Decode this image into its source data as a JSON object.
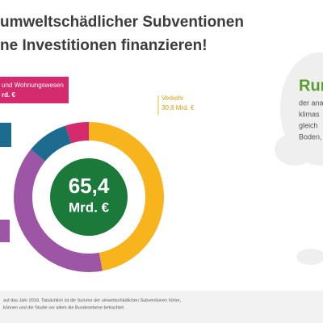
{
  "title_lines": [
    "umweltschädlicher Subventionen",
    "ne Investitionen finanzieren!"
  ],
  "chart_data": {
    "type": "donut",
    "categories": [
      "Verkehr",
      null,
      null,
      "und Wohnungswesen"
    ],
    "values": [
      30.8,
      25.4,
      5.9,
      3.3
    ],
    "value_labels": [
      "30,8 Mrd. €",
      null,
      null,
      null
    ],
    "colors": [
      "#f8b41c",
      "#9d56a6",
      "#1d6b8e",
      "#d42a6e"
    ],
    "total": {
      "value": 65.4,
      "label": "65,4"
    },
    "total_unit": "Mrd. €",
    "annotations": [
      "rd. €"
    ]
  },
  "side_panel": {
    "heading": "Run",
    "lines": [
      "der ana",
      "klimas",
      "gleich",
      "Boden,"
    ]
  },
  "footer": [
    "auf das Jahr 2018. Tatsächlich ist die Summe der umweltschädlichen Subventionen höher,",
    "können und die Studie vor allem die Bundesebene betrachtet."
  ]
}
